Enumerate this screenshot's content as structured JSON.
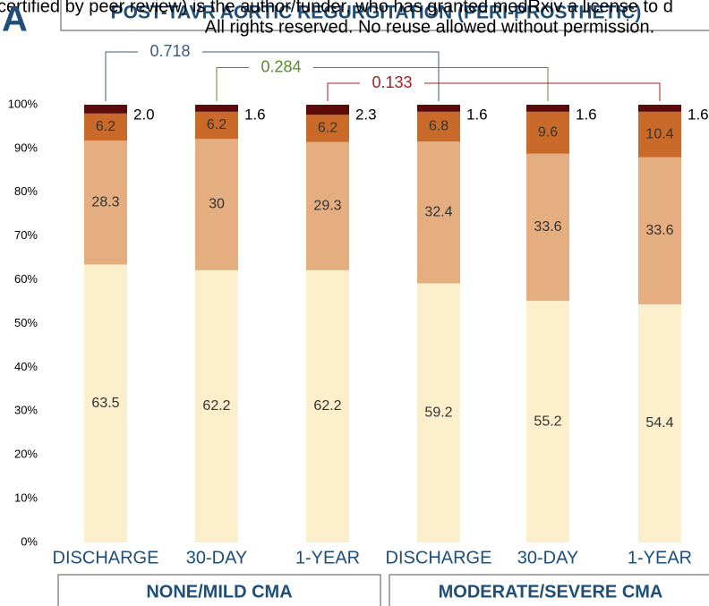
{
  "chart_data": {
    "type": "stacked_bar",
    "panel": "A",
    "title": "POST-TAVR AORTIC REGURGITATION (PERI-PROSTHETIC)",
    "watermark": [
      "certified by peer review) is the author/funder, who has granted medRxiv a license to d",
      "All rights reserved. No reuse allowed without permission."
    ],
    "categories": [
      "DISCHARGE",
      "30-DAY",
      "1-YEAR",
      "DISCHARGE",
      "30-DAY",
      "1-YEAR"
    ],
    "groups": [
      "NONE/MILD CMA",
      "MODERATE/SEVERE CMA"
    ],
    "series": [
      {
        "color": "#fcefcb",
        "values": [
          63.5,
          62.2,
          62.2,
          59.2,
          55.2,
          54.4
        ]
      },
      {
        "color": "#e4ae80",
        "values": [
          28.3,
          30,
          29.3,
          32.4,
          33.6,
          33.6
        ]
      },
      {
        "color": "#c96a2a",
        "values": [
          6.2,
          6.2,
          6.2,
          6.8,
          9.6,
          10.4
        ]
      },
      {
        "color": "#5c0a0a",
        "values": [
          2.0,
          1.6,
          2.3,
          1.6,
          1.6,
          1.6
        ],
        "value_labels": [
          "2.0",
          "1.6",
          "2.3",
          "1.6",
          "1.6",
          "1.6"
        ]
      }
    ],
    "annotations": [
      {
        "text": "0.718",
        "color": "#3d5a80"
      },
      {
        "text": "0.284",
        "color": "#5b8a2f"
      },
      {
        "text": "0.133",
        "color": "#a51e22"
      }
    ],
    "ylim": [
      0,
      100
    ],
    "yticks": [
      {
        "value": 0,
        "label": "0%"
      },
      {
        "value": 10,
        "label": "10%"
      },
      {
        "value": 20,
        "label": "20%"
      },
      {
        "value": 30,
        "label": "30%"
      },
      {
        "value": 40,
        "label": "40%"
      },
      {
        "value": 50,
        "label": "50%"
      },
      {
        "value": 60,
        "label": "60%"
      },
      {
        "value": 70,
        "label": "70%"
      },
      {
        "value": 80,
        "label": "80%"
      },
      {
        "value": 90,
        "label": "90%"
      },
      {
        "value": 100,
        "label": "100%"
      }
    ]
  }
}
